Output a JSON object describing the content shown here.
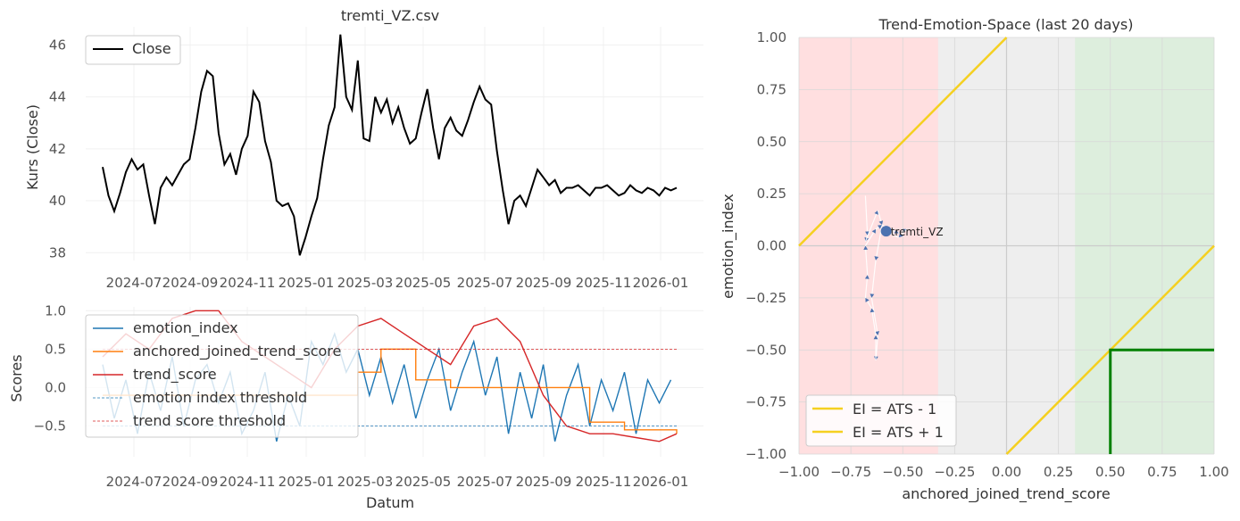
{
  "chart_data": [
    {
      "type": "line",
      "title": "tremti_VZ.csv",
      "xlabel": "",
      "ylabel": "Kurs (Close)",
      "ylim": [
        37.7,
        46.7
      ],
      "yticks": [
        "38",
        "40",
        "42",
        "44",
        "46"
      ],
      "xticks": [
        "2024-07",
        "2024-09",
        "2024-11",
        "2025-01",
        "2025-03",
        "2025-05",
        "2025-07",
        "2025-09",
        "2025-11",
        "2026-01"
      ],
      "legend": [
        "Close"
      ],
      "legend_position": "upper-left",
      "series": [
        {
          "name": "Close",
          "color": "#000000",
          "x": [
            0,
            1,
            2,
            3,
            4,
            5,
            6,
            7,
            8,
            9,
            10,
            11,
            12,
            13,
            14,
            15,
            16,
            17,
            18,
            19,
            20,
            21,
            22,
            23,
            24,
            25,
            26,
            27,
            28,
            29,
            30,
            31,
            32,
            33,
            34,
            35,
            36,
            37,
            38,
            39,
            40,
            41,
            42,
            43,
            44,
            45,
            46,
            47,
            48,
            49,
            50,
            51,
            52,
            53,
            54,
            55,
            56,
            57,
            58,
            59,
            60,
            61,
            62,
            63,
            64,
            65,
            66,
            67,
            68,
            69,
            70,
            71,
            72,
            73,
            74,
            75,
            76,
            77,
            78,
            79,
            80,
            81,
            82,
            83,
            84,
            85,
            86,
            87,
            88,
            89,
            90,
            91,
            92,
            93,
            94,
            95,
            96,
            97,
            98,
            99
          ],
          "values": [
            41.3,
            40.2,
            39.6,
            40.3,
            41.1,
            41.6,
            41.2,
            41.4,
            40.2,
            39.1,
            40.5,
            40.9,
            40.6,
            41.0,
            41.4,
            41.6,
            42.8,
            44.2,
            45.0,
            44.8,
            42.6,
            41.4,
            41.8,
            41.0,
            42.0,
            42.5,
            44.2,
            43.8,
            42.3,
            41.5,
            40.0,
            39.8,
            39.9,
            39.4,
            37.9,
            38.6,
            39.4,
            40.1,
            41.6,
            42.9,
            43.6,
            46.4,
            44.0,
            43.5,
            45.4,
            42.4,
            42.3,
            44.0,
            43.4,
            43.9,
            43.0,
            43.6,
            42.8,
            42.2,
            42.4,
            43.4,
            44.3,
            42.8,
            41.6,
            42.8,
            43.2,
            42.7,
            42.5,
            43.1,
            43.8,
            44.4,
            43.9,
            43.7,
            41.9,
            40.4,
            39.1,
            40.0,
            40.2,
            39.8,
            40.5,
            41.2,
            40.9,
            40.6,
            40.8,
            40.3,
            40.5,
            40.5,
            40.6,
            40.4,
            40.2,
            40.5,
            40.5,
            40.6,
            40.4,
            40.2,
            40.3,
            40.6,
            40.4,
            40.3,
            40.5,
            40.4,
            40.2,
            40.5,
            40.4,
            40.5
          ]
        }
      ]
    },
    {
      "type": "line",
      "title": "",
      "xlabel": "Datum",
      "ylabel": "Scores",
      "ylim": [
        -0.9,
        1.05
      ],
      "yticks": [
        "1.0",
        "0.5",
        "0.0",
        "−0.5"
      ],
      "xticks": [
        "2024-07",
        "2024-09",
        "2024-11",
        "2025-01",
        "2025-03",
        "2025-05",
        "2025-07",
        "2025-09",
        "2025-11",
        "2026-01"
      ],
      "legend": [
        "emotion_index",
        "anchored_joined_trend_score",
        "trend_score",
        "emotion index threshold",
        "trend score threshold"
      ],
      "legend_position": "upper-left",
      "series": [
        {
          "name": "emotion_index",
          "color": "#1f77b4",
          "x": [
            0,
            2,
            4,
            6,
            8,
            10,
            12,
            14,
            16,
            18,
            20,
            22,
            24,
            26,
            28,
            30,
            32,
            34,
            36,
            38,
            40,
            42,
            44,
            46,
            48,
            50,
            52,
            54,
            56,
            58,
            60,
            62,
            64,
            66,
            68,
            70,
            72,
            74,
            76,
            78,
            80,
            82,
            84,
            86,
            88,
            90,
            92,
            94,
            96,
            98
          ],
          "values": [
            0.3,
            -0.4,
            0.1,
            -0.6,
            0.2,
            -0.3,
            0.4,
            -0.5,
            0.1,
            0.3,
            -0.2,
            0.2,
            -0.6,
            -0.3,
            0.2,
            -0.7,
            -0.1,
            -0.5,
            0.6,
            0.3,
            0.7,
            0.2,
            0.5,
            -0.1,
            0.4,
            -0.2,
            0.3,
            -0.4,
            0.1,
            0.5,
            -0.3,
            0.2,
            0.6,
            -0.1,
            0.4,
            -0.6,
            0.2,
            -0.4,
            0.3,
            -0.7,
            -0.1,
            0.3,
            -0.5,
            0.1,
            -0.3,
            0.2,
            -0.6,
            0.1,
            -0.2,
            0.1
          ]
        },
        {
          "name": "anchored_joined_trend_score",
          "color": "#ff7f0e",
          "x": [
            0,
            10,
            20,
            30,
            38,
            44,
            48,
            54,
            60,
            68,
            74,
            84,
            90,
            99
          ],
          "values": [
            -0.1,
            -0.1,
            -0.1,
            -0.1,
            -0.1,
            0.2,
            0.5,
            0.1,
            0.0,
            0.0,
            0.0,
            -0.45,
            -0.55,
            -0.6
          ]
        },
        {
          "name": "trend_score",
          "color": "#d62728",
          "x": [
            0,
            4,
            8,
            12,
            16,
            20,
            24,
            28,
            32,
            36,
            40,
            44,
            48,
            52,
            56,
            60,
            64,
            68,
            72,
            76,
            80,
            84,
            88,
            92,
            96,
            99
          ],
          "values": [
            0.4,
            0.7,
            0.5,
            0.9,
            1.0,
            1.0,
            0.6,
            0.4,
            0.2,
            0.0,
            0.5,
            0.8,
            0.9,
            0.7,
            0.5,
            0.3,
            0.8,
            0.9,
            0.6,
            -0.1,
            -0.5,
            -0.6,
            -0.6,
            -0.65,
            -0.7,
            -0.6
          ]
        },
        {
          "name": "emotion index threshold",
          "color": "#1f77b4",
          "x": [
            0,
            99
          ],
          "values": [
            -0.5,
            -0.5
          ]
        },
        {
          "name": "trend score threshold",
          "color": "#d62728",
          "x": [
            0,
            99
          ],
          "values": [
            0.5,
            0.5
          ]
        }
      ]
    },
    {
      "type": "scatter",
      "title": "Trend-Emotion-Space (last 20 days)",
      "xlabel": "anchored_joined_trend_score",
      "ylabel": "emotion_index",
      "xlim": [
        -1.0,
        1.0
      ],
      "ylim": [
        -1.0,
        1.0
      ],
      "xticks": [
        "−1.00",
        "−0.75",
        "−0.50",
        "−0.25",
        "0.00",
        "0.25",
        "0.50",
        "0.75",
        "1.00"
      ],
      "yticks": [
        "1.00",
        "0.75",
        "0.50",
        "0.25",
        "0.00",
        "−0.25",
        "−0.50",
        "−0.75",
        "−1.00"
      ],
      "legend": [
        "EI = ATS - 1",
        "EI = ATS + 1"
      ],
      "legend_position": "lower-left",
      "annotation": "tremti_VZ",
      "current_point": {
        "x": -0.58,
        "y": 0.07
      },
      "trail": {
        "x": [
          -0.68,
          -0.67,
          -0.68,
          -0.62,
          -0.6,
          -0.63,
          -0.65,
          -0.62,
          -0.63,
          -0.63,
          -0.65,
          -0.68,
          -0.67,
          -0.68,
          -0.63,
          -0.6,
          -0.52,
          -0.48,
          -0.52,
          -0.58
        ],
        "y": [
          0.24,
          0.05,
          0.02,
          0.17,
          0.1,
          -0.07,
          -0.25,
          -0.43,
          -0.55,
          -0.43,
          -0.3,
          -0.25,
          -0.14,
          0.0,
          0.08,
          0.1,
          0.06,
          0.08,
          0.04,
          0.07
        ]
      },
      "regions": {
        "left_red_until": -0.33,
        "right_green_from": 0.33
      },
      "lines": [
        {
          "name": "EI = ATS - 1",
          "color": "#f5d020"
        },
        {
          "name": "EI = ATS + 1",
          "color": "#f5d020"
        }
      ],
      "target_box": {
        "x_from": 0.5,
        "y_to": -0.5,
        "color": "#008000"
      }
    }
  ]
}
